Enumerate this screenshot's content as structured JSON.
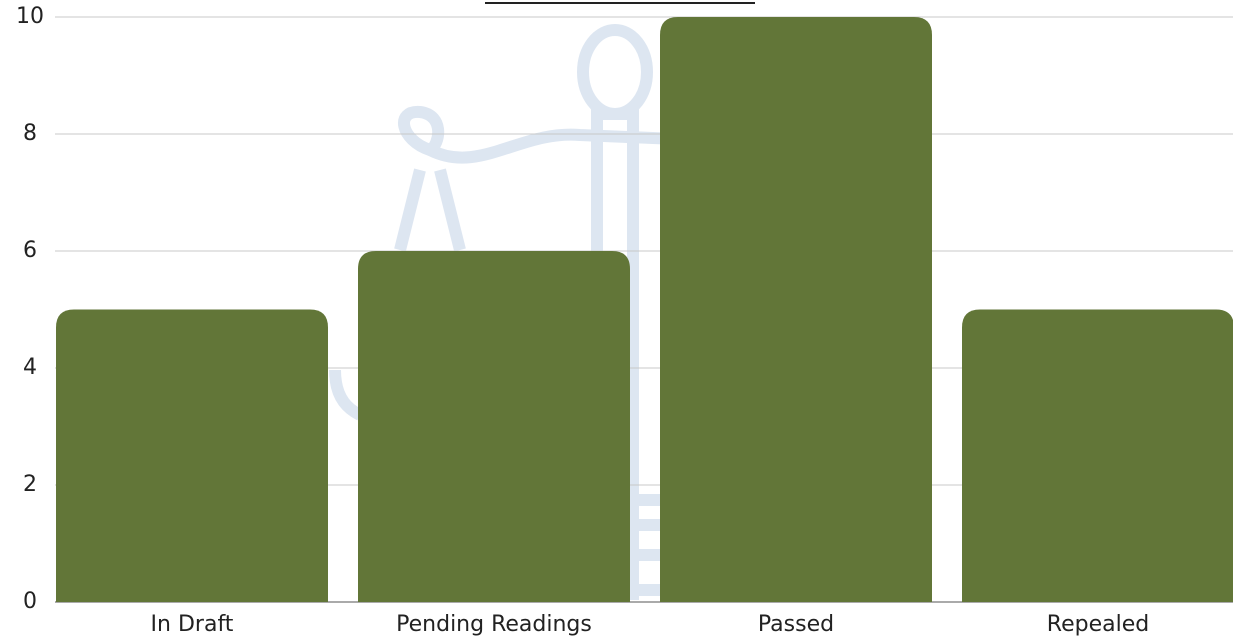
{
  "chart_data": {
    "type": "bar",
    "categories": [
      "In Draft",
      "Pending Readings",
      "Passed",
      "Repealed"
    ],
    "values": [
      5,
      6,
      10,
      5
    ],
    "color": "#627638",
    "ylim": [
      0,
      10
    ],
    "yticks": [
      0,
      2,
      4,
      6,
      8,
      10
    ],
    "grid": true
  }
}
